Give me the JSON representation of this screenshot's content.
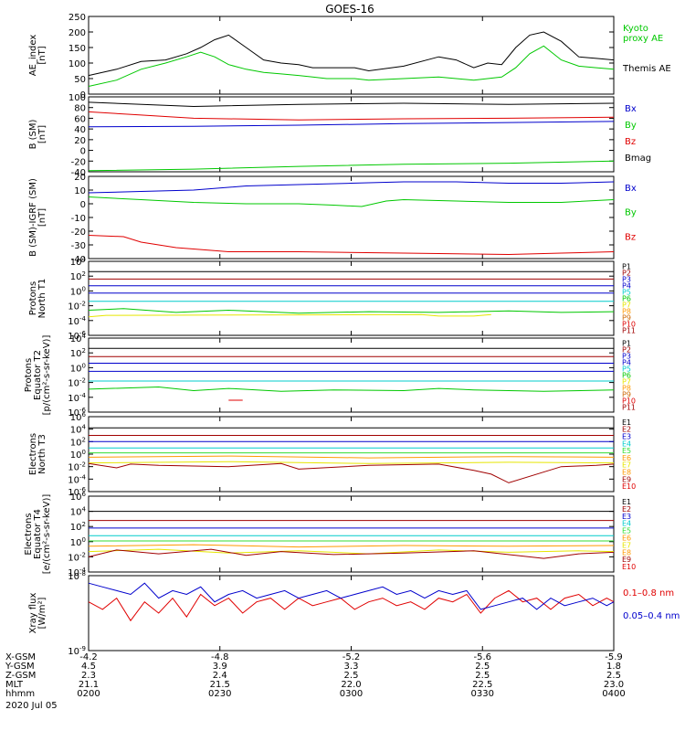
{
  "title": "GOES-16",
  "colors": {
    "black": "#000000",
    "green": "#00c800",
    "blue": "#0000cc",
    "red": "#e00000",
    "cyan": "#00cccc",
    "yellow": "#e6e600",
    "orange": "#ff9900",
    "darkred": "#a00000",
    "lightgreen": "#33dd33"
  },
  "x_axis": {
    "tick_labels": {
      "X-GSM": [
        "-4.2",
        "-4.8",
        "-5.2",
        "-5.6",
        "-5.9"
      ],
      "Y-GSM": [
        "4.5",
        "3.9",
        "3.3",
        "2.5",
        "1.8"
      ],
      "Z-GSM": [
        "2.3",
        "2.4",
        "2.5",
        "2.5",
        "2.5"
      ],
      "MLT": [
        "21.1",
        "21.5",
        "22.0",
        "22.5",
        "23.0"
      ],
      "hhmm": [
        "0200",
        "0230",
        "0300",
        "0330",
        "0400"
      ]
    },
    "row_names": [
      "X-GSM",
      "Y-GSM",
      "Z-GSM",
      "MLT",
      "hhmm"
    ],
    "date": "2020 Jul 05"
  },
  "chart_data": [
    {
      "type": "line",
      "ylabel": "AE_index\n[nT]",
      "ylim": [
        0,
        250
      ],
      "yticks": [
        "0",
        "50",
        "100",
        "150",
        "200",
        "250"
      ],
      "series": [
        {
          "name": "Themis AE",
          "color": "black",
          "x": [
            0,
            8,
            15,
            22,
            28,
            32,
            36,
            40,
            45,
            50,
            55,
            60,
            64,
            68,
            72,
            76,
            80,
            90,
            100,
            105,
            110,
            114,
            118,
            122,
            126,
            130,
            135,
            140,
            145,
            150
          ],
          "y": [
            60,
            80,
            105,
            110,
            130,
            150,
            175,
            190,
            150,
            110,
            100,
            95,
            85,
            85,
            85,
            85,
            75,
            90,
            120,
            110,
            85,
            100,
            95,
            150,
            190,
            200,
            170,
            120,
            115,
            110
          ]
        },
        {
          "name": "Kyoto\nproxy AE",
          "color": "green",
          "x": [
            0,
            8,
            15,
            22,
            28,
            32,
            36,
            40,
            45,
            50,
            55,
            60,
            64,
            68,
            72,
            76,
            80,
            90,
            100,
            105,
            110,
            114,
            118,
            122,
            126,
            130,
            135,
            140,
            145,
            150
          ],
          "y": [
            25,
            45,
            80,
            100,
            120,
            135,
            120,
            95,
            80,
            70,
            65,
            60,
            55,
            50,
            50,
            50,
            45,
            50,
            55,
            50,
            45,
            50,
            55,
            85,
            130,
            155,
            110,
            90,
            85,
            80
          ]
        }
      ]
    },
    {
      "type": "line",
      "ylabel": "B (SM)\n[nT]",
      "ylim": [
        -40,
        100
      ],
      "yticks": [
        "-40",
        "-20",
        "0",
        "20",
        "40",
        "60",
        "80",
        "100"
      ],
      "series": [
        {
          "name": "Bmag",
          "color": "black",
          "x": [
            0,
            30,
            60,
            90,
            120,
            150
          ],
          "y": [
            90,
            82,
            86,
            88,
            86,
            88
          ]
        },
        {
          "name": "Bz",
          "color": "red",
          "x": [
            0,
            15,
            30,
            60,
            90,
            120,
            150
          ],
          "y": [
            72,
            66,
            60,
            57,
            59,
            60,
            62
          ]
        },
        {
          "name": "Bx",
          "color": "blue",
          "x": [
            0,
            30,
            60,
            90,
            120,
            150
          ],
          "y": [
            44,
            45,
            47,
            50,
            52,
            54
          ]
        },
        {
          "name": "By",
          "color": "green",
          "x": [
            0,
            30,
            60,
            90,
            120,
            150
          ],
          "y": [
            -38,
            -35,
            -30,
            -26,
            -24,
            -20
          ]
        }
      ]
    },
    {
      "type": "line",
      "ylabel": "B (SM)-IGRF (SM)\n[nT]",
      "ylim": [
        -40,
        20
      ],
      "yticks": [
        "-40",
        "-30",
        "-20",
        "-10",
        "0",
        "10",
        "20"
      ],
      "series": [
        {
          "name": "Bx",
          "color": "blue",
          "x": [
            0,
            15,
            30,
            45,
            60,
            75,
            90,
            105,
            120,
            135,
            150
          ],
          "y": [
            8,
            9,
            10,
            13,
            14,
            15,
            16,
            16,
            15,
            15,
            16
          ]
        },
        {
          "name": "By",
          "color": "green",
          "x": [
            0,
            15,
            30,
            45,
            60,
            70,
            78,
            85,
            90,
            105,
            120,
            135,
            150
          ],
          "y": [
            5,
            3,
            1,
            0,
            0,
            -1,
            -2,
            2,
            3,
            2,
            1,
            1,
            3
          ]
        },
        {
          "name": "Bz",
          "color": "red",
          "x": [
            0,
            10,
            15,
            25,
            40,
            60,
            90,
            120,
            135,
            150
          ],
          "y": [
            -23,
            -24,
            -28,
            -32,
            -35,
            -35,
            -36,
            -37,
            -36,
            -35
          ]
        }
      ]
    },
    {
      "type": "line",
      "ylabel": "Protons\nNorth T1",
      "yscale": "log",
      "ylim": [
        -6,
        4
      ],
      "yticks": [
        "10^-6",
        "10^-4",
        "10^-2",
        "10^0",
        "10^2",
        "10^4"
      ],
      "legend": [
        "P1",
        "P2",
        "P3",
        "P4",
        "P5",
        "P6",
        "P7",
        "P8",
        "P9",
        "P10",
        "P11"
      ],
      "series": [
        {
          "name": "P1",
          "color": "black",
          "x": [
            0,
            150
          ],
          "y": [
            2.6,
            2.6
          ]
        },
        {
          "name": "P2",
          "color": "darkred",
          "x": [
            0,
            150
          ],
          "y": [
            1.6,
            1.6
          ]
        },
        {
          "name": "P3",
          "color": "blue",
          "x": [
            0,
            150
          ],
          "y": [
            0.7,
            0.7
          ]
        },
        {
          "name": "P4",
          "color": "blue",
          "x": [
            0,
            150
          ],
          "y": [
            -0.3,
            -0.3
          ]
        },
        {
          "name": "P5",
          "color": "cyan",
          "x": [
            0,
            150
          ],
          "y": [
            -1.4,
            -1.4
          ]
        },
        {
          "name": "P6",
          "color": "green",
          "x": [
            0,
            10,
            25,
            40,
            60,
            80,
            100,
            120,
            135,
            150
          ],
          "y": [
            -2.6,
            -2.4,
            -2.9,
            -2.6,
            -3.0,
            -2.8,
            -2.9,
            -2.7,
            -2.9,
            -2.8
          ]
        },
        {
          "name": "P7",
          "color": "yellow",
          "x": [
            0,
            5,
            95,
            100,
            110,
            115
          ],
          "y": [
            -3.5,
            -3.3,
            -3.2,
            -3.4,
            -3.4,
            -3.2
          ]
        }
      ]
    },
    {
      "type": "line",
      "ylabel": "Protons\nEquator T2\n[p/(cm²-s-sr-keV)]",
      "yscale": "log",
      "ylim": [
        -6,
        4
      ],
      "yticks": [
        "10^-6",
        "10^-4",
        "10^-2",
        "10^0",
        "10^2",
        "10^4"
      ],
      "legend": [
        "P1",
        "P2",
        "P3",
        "P4",
        "P5",
        "P6",
        "P7",
        "P8",
        "P9",
        "P10",
        "P11"
      ],
      "series": [
        {
          "name": "P1",
          "color": "black",
          "x": [
            0,
            150
          ],
          "y": [
            2.6,
            2.6
          ]
        },
        {
          "name": "P2",
          "color": "darkred",
          "x": [
            0,
            150
          ],
          "y": [
            1.5,
            1.5
          ]
        },
        {
          "name": "P3",
          "color": "blue",
          "x": [
            0,
            150
          ],
          "y": [
            0.6,
            0.6
          ]
        },
        {
          "name": "P4",
          "color": "blue",
          "x": [
            0,
            150
          ],
          "y": [
            -0.5,
            -0.5
          ]
        },
        {
          "name": "P5",
          "color": "cyan",
          "x": [
            0,
            150
          ],
          "y": [
            -1.8,
            -1.8
          ]
        },
        {
          "name": "P6",
          "color": "green",
          "x": [
            0,
            20,
            30,
            40,
            55,
            70,
            90,
            100,
            110,
            130,
            150
          ],
          "y": [
            -2.9,
            -2.6,
            -3.1,
            -2.8,
            -3.2,
            -3.0,
            -3.1,
            -2.8,
            -3.0,
            -3.2,
            -3.0
          ]
        },
        {
          "name": "P10",
          "color": "red",
          "x": [
            40,
            44
          ],
          "y": [
            -4.4,
            -4.4
          ]
        }
      ]
    },
    {
      "type": "line",
      "ylabel": "Electrons\nNorth T3",
      "yscale": "log",
      "ylim": [
        -6,
        6
      ],
      "yticks": [
        "10^-6",
        "10^-4",
        "10^-2",
        "10^0",
        "10^2",
        "10^4",
        "10^6"
      ],
      "legend": [
        "E1",
        "E2",
        "E3",
        "E4",
        "E5",
        "E6",
        "E7",
        "E8",
        "E9",
        "E10"
      ],
      "series": [
        {
          "name": "E1",
          "color": "black",
          "x": [
            0,
            150
          ],
          "y": [
            4.2,
            4.2
          ]
        },
        {
          "name": "E2",
          "color": "darkred",
          "x": [
            0,
            150
          ],
          "y": [
            3.0,
            3.0
          ]
        },
        {
          "name": "E3",
          "color": "blue",
          "x": [
            0,
            150
          ],
          "y": [
            2.0,
            2.0
          ]
        },
        {
          "name": "E4",
          "color": "cyan",
          "x": [
            0,
            150
          ],
          "y": [
            1.0,
            1.0
          ]
        },
        {
          "name": "E5",
          "color": "lightgreen",
          "x": [
            0,
            150
          ],
          "y": [
            0.2,
            0.2
          ]
        },
        {
          "name": "E6",
          "color": "orange",
          "x": [
            0,
            40,
            80,
            120,
            150
          ],
          "y": [
            -0.5,
            -0.3,
            -0.6,
            -0.4,
            -0.5
          ]
        },
        {
          "name": "E7",
          "color": "yellow",
          "x": [
            0,
            40,
            80,
            120,
            150
          ],
          "y": [
            -1.4,
            -1.2,
            -1.5,
            -1.3,
            -1.4
          ]
        },
        {
          "name": "E9",
          "color": "darkred",
          "x": [
            0,
            8,
            12,
            20,
            40,
            55,
            60,
            80,
            100,
            110,
            115,
            120,
            135,
            145,
            150
          ],
          "y": [
            -1.5,
            -2.2,
            -1.6,
            -1.8,
            -2.0,
            -1.5,
            -2.4,
            -1.8,
            -1.6,
            -2.6,
            -3.2,
            -4.6,
            -2.0,
            -1.8,
            -1.6
          ]
        }
      ]
    },
    {
      "type": "line",
      "ylabel": "Electrons\nEquator T4\n[e/(cm²-s-sr-keV)]",
      "yscale": "log",
      "ylim": [
        -4,
        6
      ],
      "yticks": [
        "10^-4",
        "10^-2",
        "10^0",
        "10^2",
        "10^4",
        "10^6"
      ],
      "legend": [
        "E1",
        "E2",
        "E3",
        "E4",
        "E5",
        "E6",
        "E7",
        "E8",
        "E9",
        "E10"
      ],
      "series": [
        {
          "name": "E1",
          "color": "black",
          "x": [
            0,
            150
          ],
          "y": [
            4.0,
            4.0
          ]
        },
        {
          "name": "E2",
          "color": "darkred",
          "x": [
            0,
            150
          ],
          "y": [
            2.8,
            2.8
          ]
        },
        {
          "name": "E3",
          "color": "blue",
          "x": [
            0,
            150
          ],
          "y": [
            1.8,
            1.8
          ]
        },
        {
          "name": "E4",
          "color": "cyan",
          "x": [
            0,
            150
          ],
          "y": [
            0.8,
            0.8
          ]
        },
        {
          "name": "E5",
          "color": "lightgreen",
          "x": [
            0,
            150
          ],
          "y": [
            0.1,
            0.1
          ]
        },
        {
          "name": "E6",
          "color": "orange",
          "x": [
            0,
            30,
            60,
            90,
            120,
            150
          ],
          "y": [
            -0.6,
            -0.4,
            -0.7,
            -0.5,
            -0.6,
            -0.5
          ]
        },
        {
          "name": "E7",
          "color": "yellow",
          "x": [
            0,
            20,
            40,
            60,
            80,
            100,
            120,
            140,
            150
          ],
          "y": [
            -1.3,
            -1.0,
            -1.5,
            -1.2,
            -1.6,
            -1.1,
            -1.4,
            -1.2,
            -1.3
          ]
        },
        {
          "name": "E9",
          "color": "darkred",
          "x": [
            0,
            8,
            20,
            35,
            45,
            55,
            70,
            90,
            110,
            130,
            140,
            150
          ],
          "y": [
            -2.0,
            -1.1,
            -1.6,
            -1.0,
            -1.8,
            -1.3,
            -1.7,
            -1.5,
            -1.2,
            -2.2,
            -1.6,
            -1.4
          ]
        }
      ]
    },
    {
      "type": "line",
      "ylabel": "Xray flux\n[W/m²]",
      "yscale": "log",
      "ylim": [
        -9,
        -8
      ],
      "yticks": [
        "10^-9",
        "10^-8"
      ],
      "series": [
        {
          "name": "0.1–0.8 nm",
          "color": "red",
          "x": [
            0,
            4,
            8,
            12,
            16,
            20,
            24,
            28,
            32,
            36,
            40,
            44,
            48,
            52,
            56,
            60,
            64,
            68,
            72,
            76,
            80,
            84,
            88,
            92,
            96,
            100,
            104,
            108,
            112,
            116,
            120,
            124,
            128,
            132,
            136,
            140,
            144,
            148,
            150
          ],
          "y": [
            -8.35,
            -8.45,
            -8.3,
            -8.6,
            -8.35,
            -8.5,
            -8.3,
            -8.55,
            -8.25,
            -8.4,
            -8.3,
            -8.5,
            -8.35,
            -8.3,
            -8.45,
            -8.3,
            -8.4,
            -8.35,
            -8.3,
            -8.45,
            -8.35,
            -8.3,
            -8.4,
            -8.35,
            -8.45,
            -8.3,
            -8.35,
            -8.25,
            -8.5,
            -8.3,
            -8.2,
            -8.35,
            -8.3,
            -8.45,
            -8.3,
            -8.25,
            -8.4,
            -8.3,
            -8.35
          ]
        },
        {
          "name": "0.05–0.4 nm",
          "color": "blue",
          "x": [
            0,
            4,
            8,
            12,
            16,
            20,
            24,
            28,
            32,
            36,
            40,
            44,
            48,
            52,
            56,
            60,
            64,
            68,
            72,
            76,
            80,
            84,
            88,
            92,
            96,
            100,
            104,
            108,
            112,
            116,
            120,
            124,
            128,
            132,
            136,
            140,
            144,
            148,
            150
          ],
          "y": [
            -8.1,
            -8.15,
            -8.2,
            -8.25,
            -8.1,
            -8.3,
            -8.2,
            -8.25,
            -8.15,
            -8.35,
            -8.25,
            -8.2,
            -8.3,
            -8.25,
            -8.2,
            -8.3,
            -8.25,
            -8.2,
            -8.3,
            -8.25,
            -8.2,
            -8.15,
            -8.25,
            -8.2,
            -8.3,
            -8.2,
            -8.25,
            -8.2,
            -8.45,
            -8.4,
            -8.35,
            -8.3,
            -8.45,
            -8.3,
            -8.4,
            -8.35,
            -8.3,
            -8.4,
            -8.35
          ]
        }
      ]
    }
  ]
}
